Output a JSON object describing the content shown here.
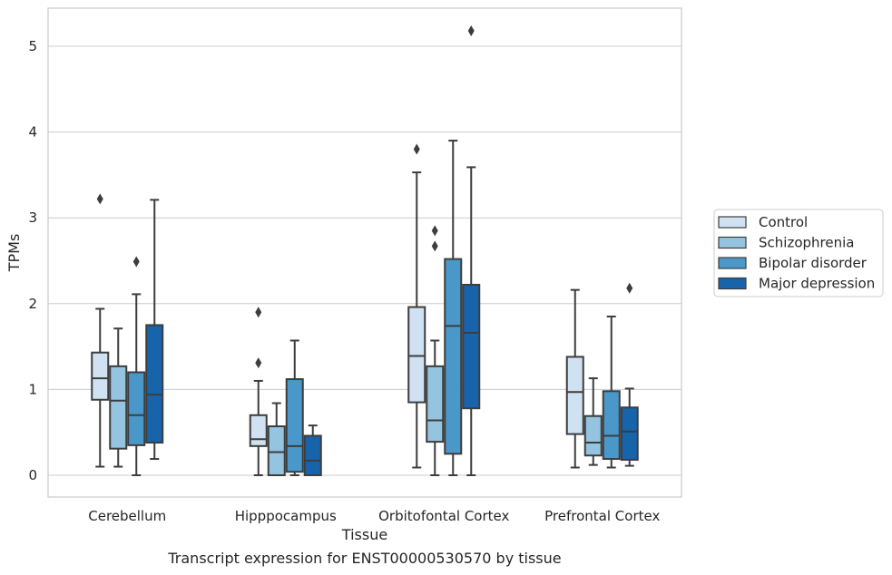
{
  "chart_data": {
    "type": "box",
    "xlabel": "Tissue",
    "ylabel": "TPMs",
    "caption": "Transcript expression for ENST00000530570 by tissue",
    "ylim": [
      -0.25,
      5.45
    ],
    "yticks": [
      0,
      1,
      2,
      3,
      4,
      5
    ],
    "grid": "horizontal",
    "legend_position": "right",
    "categories": [
      "Cerebellum",
      "Hipppocampus",
      "Orbitofontal Cortex",
      "Prefrontal Cortex"
    ],
    "series": [
      {
        "name": "Control",
        "color": "#d0e1f2",
        "boxes": [
          {
            "whislo": 0.1,
            "q1": 0.88,
            "med": 1.13,
            "q3": 1.43,
            "whishi": 1.94,
            "fliers": [
              3.22
            ]
          },
          {
            "whislo": 0.0,
            "q1": 0.34,
            "med": 0.42,
            "q3": 0.7,
            "whishi": 1.1,
            "fliers": [
              1.31,
              1.9
            ]
          },
          {
            "whislo": 0.09,
            "q1": 0.85,
            "med": 1.39,
            "q3": 1.96,
            "whishi": 3.53,
            "fliers": [
              3.8
            ]
          },
          {
            "whislo": 0.09,
            "q1": 0.48,
            "med": 0.97,
            "q3": 1.38,
            "whishi": 2.16,
            "fliers": []
          }
        ]
      },
      {
        "name": "Schizophrenia",
        "color": "#94c4df",
        "boxes": [
          {
            "whislo": 0.1,
            "q1": 0.31,
            "med": 0.87,
            "q3": 1.27,
            "whishi": 1.71,
            "fliers": []
          },
          {
            "whislo": 0.0,
            "q1": 0.0,
            "med": 0.27,
            "q3": 0.57,
            "whishi": 0.84,
            "fliers": []
          },
          {
            "whislo": 0.0,
            "q1": 0.39,
            "med": 0.64,
            "q3": 1.27,
            "whishi": 1.57,
            "fliers": [
              2.67,
              2.85
            ]
          },
          {
            "whislo": 0.12,
            "q1": 0.23,
            "med": 0.38,
            "q3": 0.69,
            "whishi": 1.13,
            "fliers": []
          }
        ]
      },
      {
        "name": "Bipolar disorder",
        "color": "#4a98c9",
        "boxes": [
          {
            "whislo": 0.0,
            "q1": 0.35,
            "med": 0.7,
            "q3": 1.2,
            "whishi": 2.11,
            "fliers": [
              2.49
            ]
          },
          {
            "whislo": 0.0,
            "q1": 0.04,
            "med": 0.34,
            "q3": 1.12,
            "whishi": 1.57,
            "fliers": []
          },
          {
            "whislo": 0.0,
            "q1": 0.25,
            "med": 1.74,
            "q3": 2.52,
            "whishi": 3.9,
            "fliers": []
          },
          {
            "whislo": 0.09,
            "q1": 0.19,
            "med": 0.46,
            "q3": 0.98,
            "whishi": 1.85,
            "fliers": []
          }
        ]
      },
      {
        "name": "Major depression",
        "color": "#1764ab",
        "boxes": [
          {
            "whislo": 0.19,
            "q1": 0.38,
            "med": 0.94,
            "q3": 1.75,
            "whishi": 3.21,
            "fliers": []
          },
          {
            "whislo": 0.0,
            "q1": 0.0,
            "med": 0.17,
            "q3": 0.46,
            "whishi": 0.58,
            "fliers": []
          },
          {
            "whislo": 0.0,
            "q1": 0.78,
            "med": 1.66,
            "q3": 2.22,
            "whishi": 3.59,
            "fliers": [
              5.18
            ]
          },
          {
            "whislo": 0.11,
            "q1": 0.18,
            "med": 0.51,
            "q3": 0.79,
            "whishi": 1.01,
            "fliers": [
              2.18
            ]
          }
        ]
      }
    ]
  }
}
